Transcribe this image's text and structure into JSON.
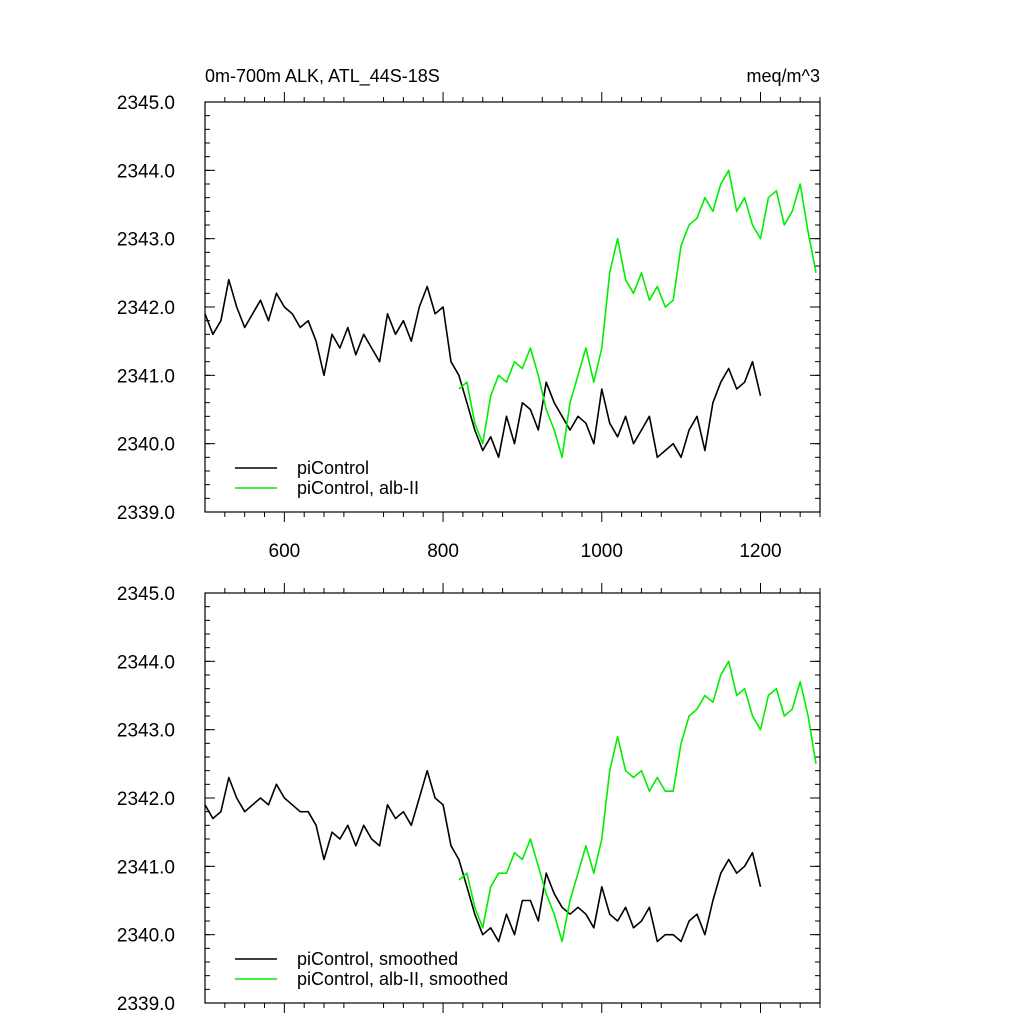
{
  "chart_data": [
    {
      "type": "line",
      "title": "0m-700m ALK, ATL_44S-18S",
      "units": "meq/m^3",
      "xlim": [
        500,
        1275
      ],
      "ylim": [
        2339.0,
        2345.0
      ],
      "x_ticks": [
        600,
        800,
        1000,
        1200
      ],
      "x_tick_labels": [
        "600",
        "800",
        "1000",
        "1200"
      ],
      "y_ticks": [
        2339.0,
        2340.0,
        2341.0,
        2342.0,
        2343.0,
        2344.0,
        2345.0
      ],
      "y_tick_labels": [
        "2339.0",
        "2340.0",
        "2341.0",
        "2342.0",
        "2343.0",
        "2344.0",
        "2345.0"
      ],
      "legend_position": "bottom-left",
      "series": [
        {
          "name": "piControl",
          "color": "#000000",
          "x": [
            500,
            510,
            520,
            530,
            540,
            550,
            560,
            570,
            580,
            590,
            600,
            610,
            620,
            630,
            640,
            650,
            660,
            670,
            680,
            690,
            700,
            710,
            720,
            730,
            740,
            750,
            760,
            770,
            780,
            790,
            800,
            810,
            820,
            830,
            840,
            850,
            860,
            870,
            880,
            890,
            900,
            910,
            920,
            930,
            940,
            950,
            960,
            970,
            980,
            990,
            1000,
            1010,
            1020,
            1030,
            1040,
            1050,
            1060,
            1070,
            1080,
            1090,
            1100,
            1110,
            1120,
            1130,
            1140,
            1150,
            1160,
            1170,
            1180,
            1190,
            1200
          ],
          "y": [
            2341.9,
            2341.6,
            2341.8,
            2342.4,
            2342.0,
            2341.7,
            2341.9,
            2342.1,
            2341.8,
            2342.2,
            2342.0,
            2341.9,
            2341.7,
            2341.8,
            2341.5,
            2341.0,
            2341.6,
            2341.4,
            2341.7,
            2341.3,
            2341.6,
            2341.4,
            2341.2,
            2341.9,
            2341.6,
            2341.8,
            2341.5,
            2342.0,
            2342.3,
            2341.9,
            2342.0,
            2341.2,
            2341.0,
            2340.6,
            2340.2,
            2339.9,
            2340.1,
            2339.8,
            2340.4,
            2340.0,
            2340.6,
            2340.5,
            2340.2,
            2340.9,
            2340.6,
            2340.4,
            2340.2,
            2340.4,
            2340.3,
            2340.0,
            2340.8,
            2340.3,
            2340.1,
            2340.4,
            2340.0,
            2340.2,
            2340.4,
            2339.8,
            2339.9,
            2340.0,
            2339.8,
            2340.2,
            2340.4,
            2339.9,
            2340.6,
            2340.9,
            2341.1,
            2340.8,
            2340.9,
            2341.2,
            2340.7
          ]
        },
        {
          "name": "piControl, alb-II",
          "color": "#00ee00",
          "x": [
            820,
            830,
            840,
            850,
            860,
            870,
            880,
            890,
            900,
            910,
            920,
            930,
            940,
            950,
            960,
            970,
            980,
            990,
            1000,
            1010,
            1020,
            1030,
            1040,
            1050,
            1060,
            1070,
            1080,
            1090,
            1100,
            1110,
            1120,
            1130,
            1140,
            1150,
            1160,
            1170,
            1180,
            1190,
            1200,
            1210,
            1220,
            1230,
            1240,
            1250,
            1260,
            1270
          ],
          "y": [
            2340.8,
            2340.9,
            2340.3,
            2340.0,
            2340.7,
            2341.0,
            2340.9,
            2341.2,
            2341.1,
            2341.4,
            2341.0,
            2340.5,
            2340.2,
            2339.8,
            2340.6,
            2341.0,
            2341.4,
            2340.9,
            2341.4,
            2342.5,
            2343.0,
            2342.4,
            2342.2,
            2342.5,
            2342.1,
            2342.3,
            2342.0,
            2342.1,
            2342.9,
            2343.2,
            2343.3,
            2343.6,
            2343.4,
            2343.8,
            2344.0,
            2343.4,
            2343.6,
            2343.2,
            2343.0,
            2343.6,
            2343.7,
            2343.2,
            2343.4,
            2343.8,
            2343.1,
            2342.5
          ]
        }
      ]
    },
    {
      "type": "line",
      "xlim": [
        500,
        1275
      ],
      "ylim": [
        2339.0,
        2345.0
      ],
      "x_ticks": [
        600,
        800,
        1000,
        1200
      ],
      "y_ticks": [
        2339.0,
        2340.0,
        2341.0,
        2342.0,
        2343.0,
        2344.0,
        2345.0
      ],
      "y_tick_labels": [
        "2339.0",
        "2340.0",
        "2341.0",
        "2342.0",
        "2343.0",
        "2344.0",
        "2345.0"
      ],
      "legend_position": "bottom-left",
      "series": [
        {
          "name": "piControl, smoothed",
          "color": "#000000",
          "x": [
            500,
            510,
            520,
            530,
            540,
            550,
            560,
            570,
            580,
            590,
            600,
            610,
            620,
            630,
            640,
            650,
            660,
            670,
            680,
            690,
            700,
            710,
            720,
            730,
            740,
            750,
            760,
            770,
            780,
            790,
            800,
            810,
            820,
            830,
            840,
            850,
            860,
            870,
            880,
            890,
            900,
            910,
            920,
            930,
            940,
            950,
            960,
            970,
            980,
            990,
            1000,
            1010,
            1020,
            1030,
            1040,
            1050,
            1060,
            1070,
            1080,
            1090,
            1100,
            1110,
            1120,
            1130,
            1140,
            1150,
            1160,
            1170,
            1180,
            1190,
            1200
          ],
          "y": [
            2341.9,
            2341.7,
            2341.8,
            2342.3,
            2342.0,
            2341.8,
            2341.9,
            2342.0,
            2341.9,
            2342.2,
            2342.0,
            2341.9,
            2341.8,
            2341.8,
            2341.6,
            2341.1,
            2341.5,
            2341.4,
            2341.6,
            2341.3,
            2341.6,
            2341.4,
            2341.3,
            2341.9,
            2341.7,
            2341.8,
            2341.6,
            2342.0,
            2342.4,
            2342.0,
            2341.9,
            2341.3,
            2341.1,
            2340.7,
            2340.3,
            2340.0,
            2340.1,
            2339.9,
            2340.3,
            2340.0,
            2340.5,
            2340.5,
            2340.2,
            2340.9,
            2340.6,
            2340.4,
            2340.3,
            2340.4,
            2340.3,
            2340.1,
            2340.7,
            2340.3,
            2340.2,
            2340.4,
            2340.1,
            2340.2,
            2340.4,
            2339.9,
            2340.0,
            2340.0,
            2339.9,
            2340.2,
            2340.3,
            2340.0,
            2340.5,
            2340.9,
            2341.1,
            2340.9,
            2341.0,
            2341.2,
            2340.7
          ]
        },
        {
          "name": "piControl, alb-II, smoothed",
          "color": "#00ee00",
          "x": [
            820,
            830,
            840,
            850,
            860,
            870,
            880,
            890,
            900,
            910,
            920,
            930,
            940,
            950,
            960,
            970,
            980,
            990,
            1000,
            1010,
            1020,
            1030,
            1040,
            1050,
            1060,
            1070,
            1080,
            1090,
            1100,
            1110,
            1120,
            1130,
            1140,
            1150,
            1160,
            1170,
            1180,
            1190,
            1200,
            1210,
            1220,
            1230,
            1240,
            1250,
            1260,
            1270
          ],
          "y": [
            2340.8,
            2340.9,
            2340.4,
            2340.1,
            2340.7,
            2340.9,
            2340.9,
            2341.2,
            2341.1,
            2341.4,
            2341.0,
            2340.6,
            2340.3,
            2339.9,
            2340.5,
            2340.9,
            2341.3,
            2340.9,
            2341.4,
            2342.4,
            2342.9,
            2342.4,
            2342.3,
            2342.4,
            2342.1,
            2342.3,
            2342.1,
            2342.1,
            2342.8,
            2343.2,
            2343.3,
            2343.5,
            2343.4,
            2343.8,
            2344.0,
            2343.5,
            2343.6,
            2343.2,
            2343.0,
            2343.5,
            2343.6,
            2343.2,
            2343.3,
            2343.7,
            2343.2,
            2342.5
          ]
        }
      ]
    }
  ]
}
